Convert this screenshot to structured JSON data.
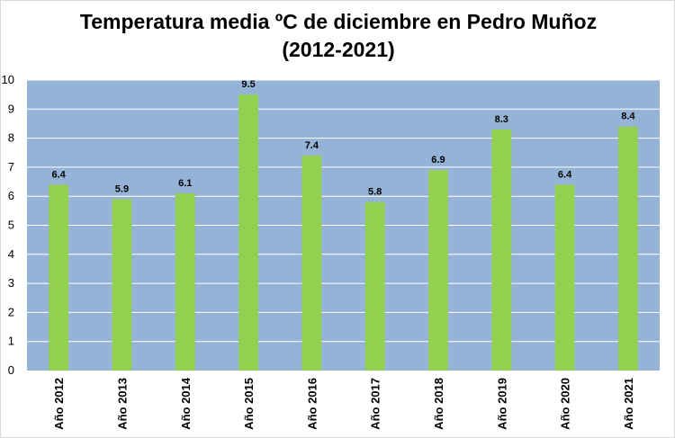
{
  "chart_data": {
    "type": "bar",
    "title_line1": "Temperatura media ºC de diciembre en Pedro Muñoz",
    "title_line2": "(2012-2021)",
    "categories": [
      "Año 2012",
      "Año 2013",
      "Año 2014",
      "Año 2015",
      "Año 2016",
      "Año 2017",
      "Año 2018",
      "Año 2019",
      "Año 2020",
      "Año 2021"
    ],
    "values": [
      6.4,
      5.9,
      6.1,
      9.5,
      7.4,
      5.8,
      6.9,
      8.3,
      6.4,
      8.4
    ],
    "data_labels": [
      "6.4",
      "5.9",
      "6.1",
      "9.5",
      "7.4",
      "5.8",
      "6.9",
      "8.3",
      "6.4",
      "8.4"
    ],
    "y_ticks": [
      "0",
      "1",
      "2",
      "3",
      "4",
      "5",
      "6",
      "7",
      "8",
      "9",
      "10"
    ],
    "ylim": [
      0,
      10
    ],
    "grid": true,
    "legend": "none",
    "colors": {
      "plot_background": "#95b3d7",
      "bar": "#92d050",
      "gridline": "#ffffff"
    }
  }
}
